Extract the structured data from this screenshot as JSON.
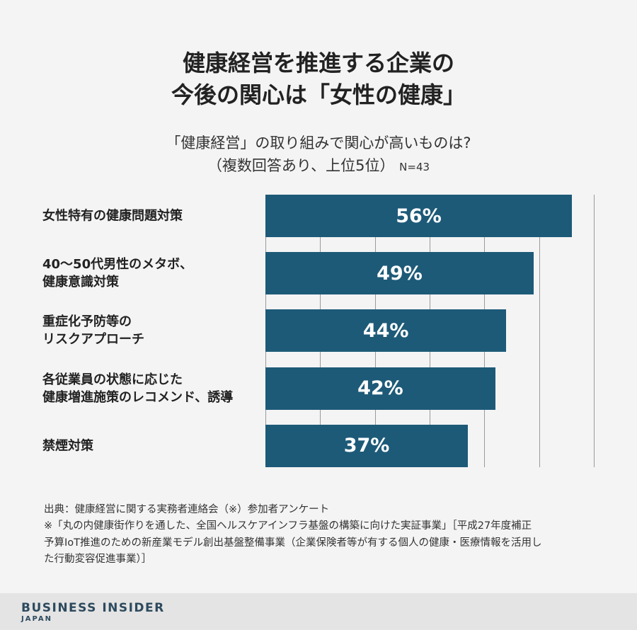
{
  "chart_data": {
    "type": "bar",
    "title": [
      "健康経営を推進する企業の",
      "今後の関心は「女性の健康」"
    ],
    "subtitle": [
      "「健康経営」の取り組みで関心が高いものは?",
      "（複数回答あり、上位5位）"
    ],
    "sample_size": "N=43",
    "categories": [
      "女性特有の健康問題対策",
      "40〜50代男性のメタボ、\n健康意識対策",
      "重症化予防等の\nリスクアプローチ",
      "各従業員の状態に応じた\n健康増進施策のレコメンド、誘導",
      "禁煙対策"
    ],
    "values": [
      56,
      49,
      44,
      42,
      37
    ],
    "value_labels": [
      "56%",
      "49%",
      "44%",
      "42%",
      "37%"
    ],
    "color": "#1d5a78",
    "xlim": [
      0,
      60
    ],
    "xticks": [
      0,
      10,
      20,
      30,
      40,
      50,
      60
    ],
    "grid": true,
    "notes": [
      "出典：健康経営に関する実務者連絡会（※）参加者アンケート",
      "※「丸の内健康街作りを通した、全国ヘルスケアインフラ基盤の構築に向けた実証事業」［平成27年度補正",
      "予算IoT推進のための新産業モデル創出基盤整備事業（企業保険者等が有する個人の健康・医療情報を活用し",
      "た行動変容促進事業）］"
    ],
    "brand": "BUSINESS INSIDER",
    "brand_sub": "JAPAN"
  }
}
